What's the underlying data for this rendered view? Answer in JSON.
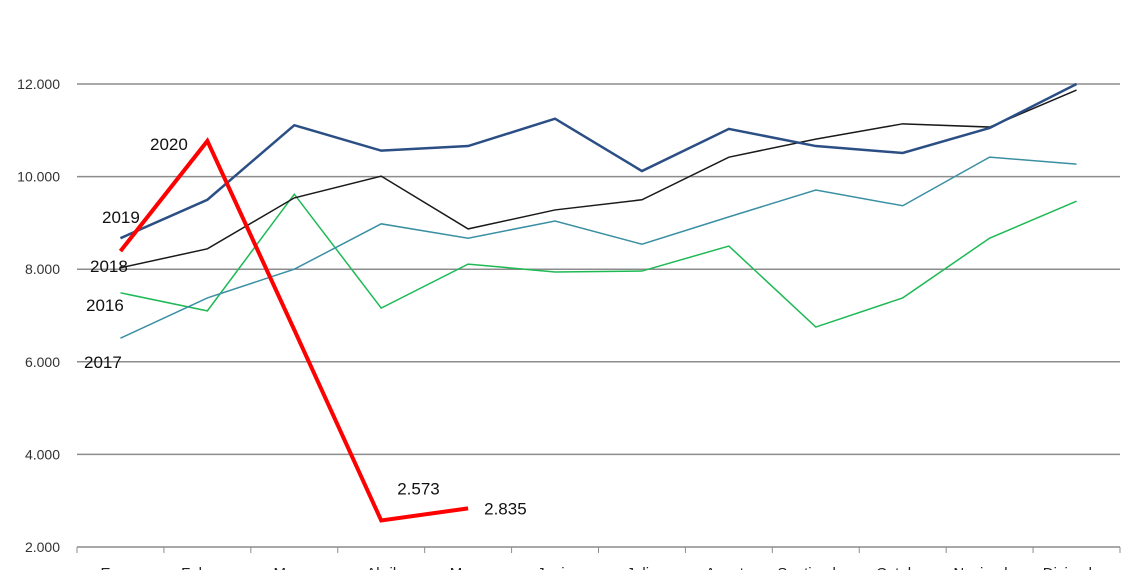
{
  "chart_data": {
    "type": "line",
    "title": "",
    "xlabel": "",
    "ylabel": "",
    "ylim": [
      2000,
      12000
    ],
    "yticks": [
      2000,
      4000,
      6000,
      8000,
      10000,
      12000
    ],
    "ytick_labels": [
      "2.000",
      "4.000",
      "6.000",
      "8.000",
      "10.000",
      "12.000"
    ],
    "grid": true,
    "categories": [
      "Enero",
      "Febrero",
      "Marzo",
      "Abril",
      "Mayo",
      "Junio",
      "Julio",
      "Agosto",
      "Septiembre",
      "Octubre",
      "Noviembre",
      "Diciembre"
    ],
    "series": [
      {
        "name": "2016",
        "color": "#1db954",
        "width": 1.5,
        "values": [
          7490,
          7100,
          9620,
          7160,
          8110,
          7940,
          7960,
          8500,
          6750,
          7380,
          8670,
          9470
        ]
      },
      {
        "name": "2017",
        "color": "#3a8fa3",
        "width": 1.5,
        "values": [
          6510,
          7380,
          8000,
          8980,
          8670,
          9040,
          8540,
          9130,
          9710,
          9370,
          10420,
          10270
        ]
      },
      {
        "name": "2018",
        "color": "#1a1a1a",
        "width": 1.5,
        "values": [
          8030,
          8440,
          9540,
          10010,
          8870,
          9280,
          9500,
          10420,
          10810,
          11140,
          11070,
          11870
        ]
      },
      {
        "name": "2019",
        "color": "#2b4f85",
        "width": 2.5,
        "values": [
          8670,
          9500,
          11110,
          10560,
          10660,
          11250,
          10120,
          11030,
          10660,
          10510,
          11050,
          12000
        ]
      },
      {
        "name": "2020",
        "color": "#ff0000",
        "width": 4,
        "values": [
          8390,
          10770,
          6690,
          2573,
          2835,
          null,
          null,
          null,
          null,
          null,
          null,
          null
        ]
      }
    ],
    "annotations": [
      {
        "text": "2.573",
        "series": "2020",
        "category": "Abril"
      },
      {
        "text": "2.835",
        "series": "2020",
        "category": "Mayo"
      }
    ]
  }
}
